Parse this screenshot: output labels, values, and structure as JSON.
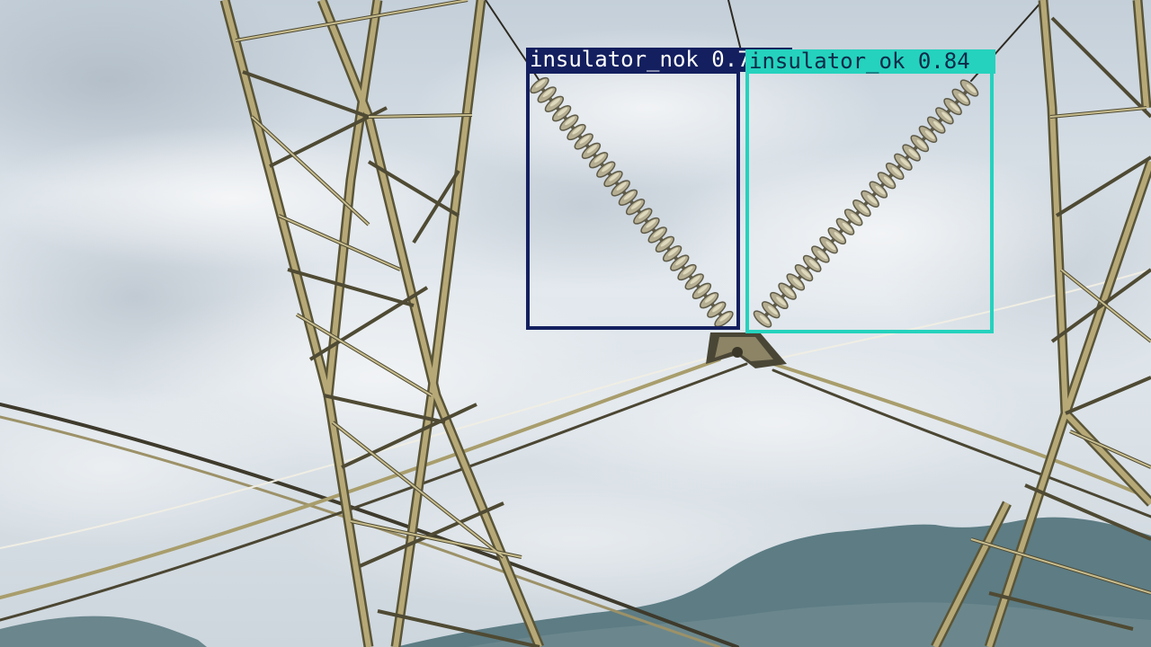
{
  "photo": {
    "subject": "insulator_nok insulator_ok"
  },
  "detections": [
    {
      "class": "insulator_nok",
      "score_text": "0.77",
      "label_text": "insulator_nok 0.77",
      "color": "#131f5e",
      "text_color": "#ffffff"
    },
    {
      "class": "insulator_ok",
      "score_text": "0.84",
      "label_text": "insulator_ok 0.84",
      "color": "#25d2bd",
      "text_color": "#0b2a4a"
    }
  ],
  "colors": {
    "sky_top": "#c7d2dc",
    "sky_mid": "#e8eef2",
    "cloud": "#f4f6f7",
    "cloud_shadow": "#a9b4bf",
    "mountain": "#5f7f86",
    "mountain_far": "#7d96a0",
    "steel": "#9c8f62",
    "steel_dark": "#5a5538",
    "insulator": "#b5ae92",
    "insulator_rim": "#e8e2c8"
  }
}
